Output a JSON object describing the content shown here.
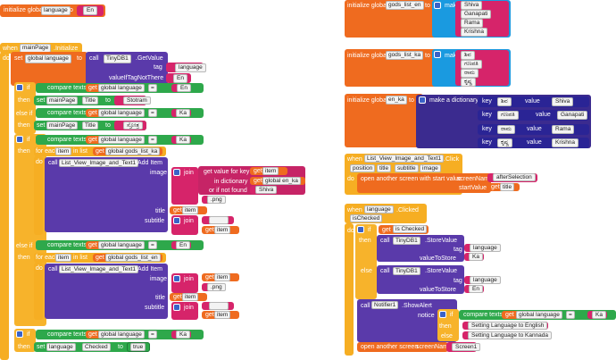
{
  "colors": {
    "orange": "#ef6b1f",
    "gold": "#f6ae23",
    "purple": "#5a3aaa",
    "indigo": "#2a2495",
    "pink": "#d6246a",
    "green": "#2ea84b",
    "blue": "#1a9ae0"
  },
  "init_language": {
    "kw": "initialize global",
    "name": "language",
    "to": "to",
    "value": "En"
  },
  "gods_en": {
    "kw": "initialize global",
    "name": "gods_list_en",
    "to": "to",
    "op": "make a list",
    "items": [
      "Shiva",
      "Ganapati",
      "Rama",
      "Krishna"
    ]
  },
  "gods_ka": {
    "kw": "initialize global",
    "name": "gods_list_ka",
    "to": "to",
    "op": "make a list",
    "items": [
      "ಶಿವ",
      "ಗಣಪತಿ",
      "ರಾಮ",
      "ಕೃಷ್ಣ"
    ]
  },
  "en_ka": {
    "kw": "initialize global",
    "name": "en_ka",
    "to": "to",
    "op": "make a dictionary",
    "key_kw": "key",
    "value_kw": "value",
    "pairs": [
      {
        "k": "ಶಿವ",
        "v": "Shiva"
      },
      {
        "k": "ಗಣಪತಿ",
        "v": "Ganapati"
      },
      {
        "k": "ರಾಮ",
        "v": "Rama"
      },
      {
        "k": "ಕೃಷ್ಣ",
        "v": "Krishna"
      }
    ]
  },
  "main_init": {
    "when": "when",
    "comp": "mainPage",
    "event": ".Initialize",
    "do": "do",
    "set": "set",
    "global_language": "global language",
    "to": "to",
    "call": "call",
    "db": "TinyDB1",
    "getvalue": ".GetValue",
    "tag": "tag",
    "tag_val": "language",
    "ifnot": "valueIfTagNotThere",
    "ifnot_val": "En",
    "if": "if",
    "else_if": "else if",
    "else": "else",
    "then": "then",
    "compare": "compare texts",
    "get": "get",
    "eq": "=",
    "en": "En",
    "ka": "Ka",
    "title": "Title",
    "stotram": "Stotram",
    "ka_title": "ಸ್ತೋತ್ರ",
    "foreach": "for each",
    "item": "item",
    "inlist": "in list",
    "gods_ka": "global gods_list_ka",
    "gods_en": "global gods_list_en",
    "lv": "List_View_Image_and_Text1",
    "additem": ".Add Item",
    "image": "image",
    "join": "join",
    "getkey": "get value for key",
    "indict": "in dictionary",
    "notfound": "or if not found",
    "dict": "global en_ka",
    "shiva": "Shiva",
    "png": ".png",
    "title_lbl": "title",
    "subtitle": "subtitle",
    "empty": "",
    "lang_chk": "language",
    "checked": "Checked",
    "true": "true"
  },
  "lv_click": {
    "when": "when",
    "comp": "List_View_Image_and_Text1",
    "event": ".Click",
    "params": [
      "position",
      "title",
      "subtitle",
      "image"
    ],
    "do": "do",
    "op": "open another screen with start value",
    "screenName": "screenName",
    "screen_val": "afterSelection",
    "startValue": "startValue",
    "get": "get",
    "title": "title"
  },
  "lang_click": {
    "when": "when",
    "comp": "language",
    "event": ".Clicked",
    "param": "isChecked",
    "do": "do",
    "if": "if",
    "get": "get",
    "ischecked": "is Checked",
    "then": "then",
    "else": "else",
    "call": "call",
    "db": "TinyDB1",
    "store": ".StoreValue",
    "tag": "tag",
    "tag_val": "language",
    "vts": "valueToStore",
    "ka": "Ka",
    "en": "En",
    "notifier": "Notifier1",
    "alert": ".ShowAlert",
    "notice": "notice",
    "compare": "compare texts",
    "global_language": "global language",
    "eq": "=",
    "msg_en": "Setting Language to English",
    "msg_ka": "Setting Language to Kannada",
    "open": "open another screen",
    "screenName": "screenName",
    "screen1": "Screen1"
  }
}
